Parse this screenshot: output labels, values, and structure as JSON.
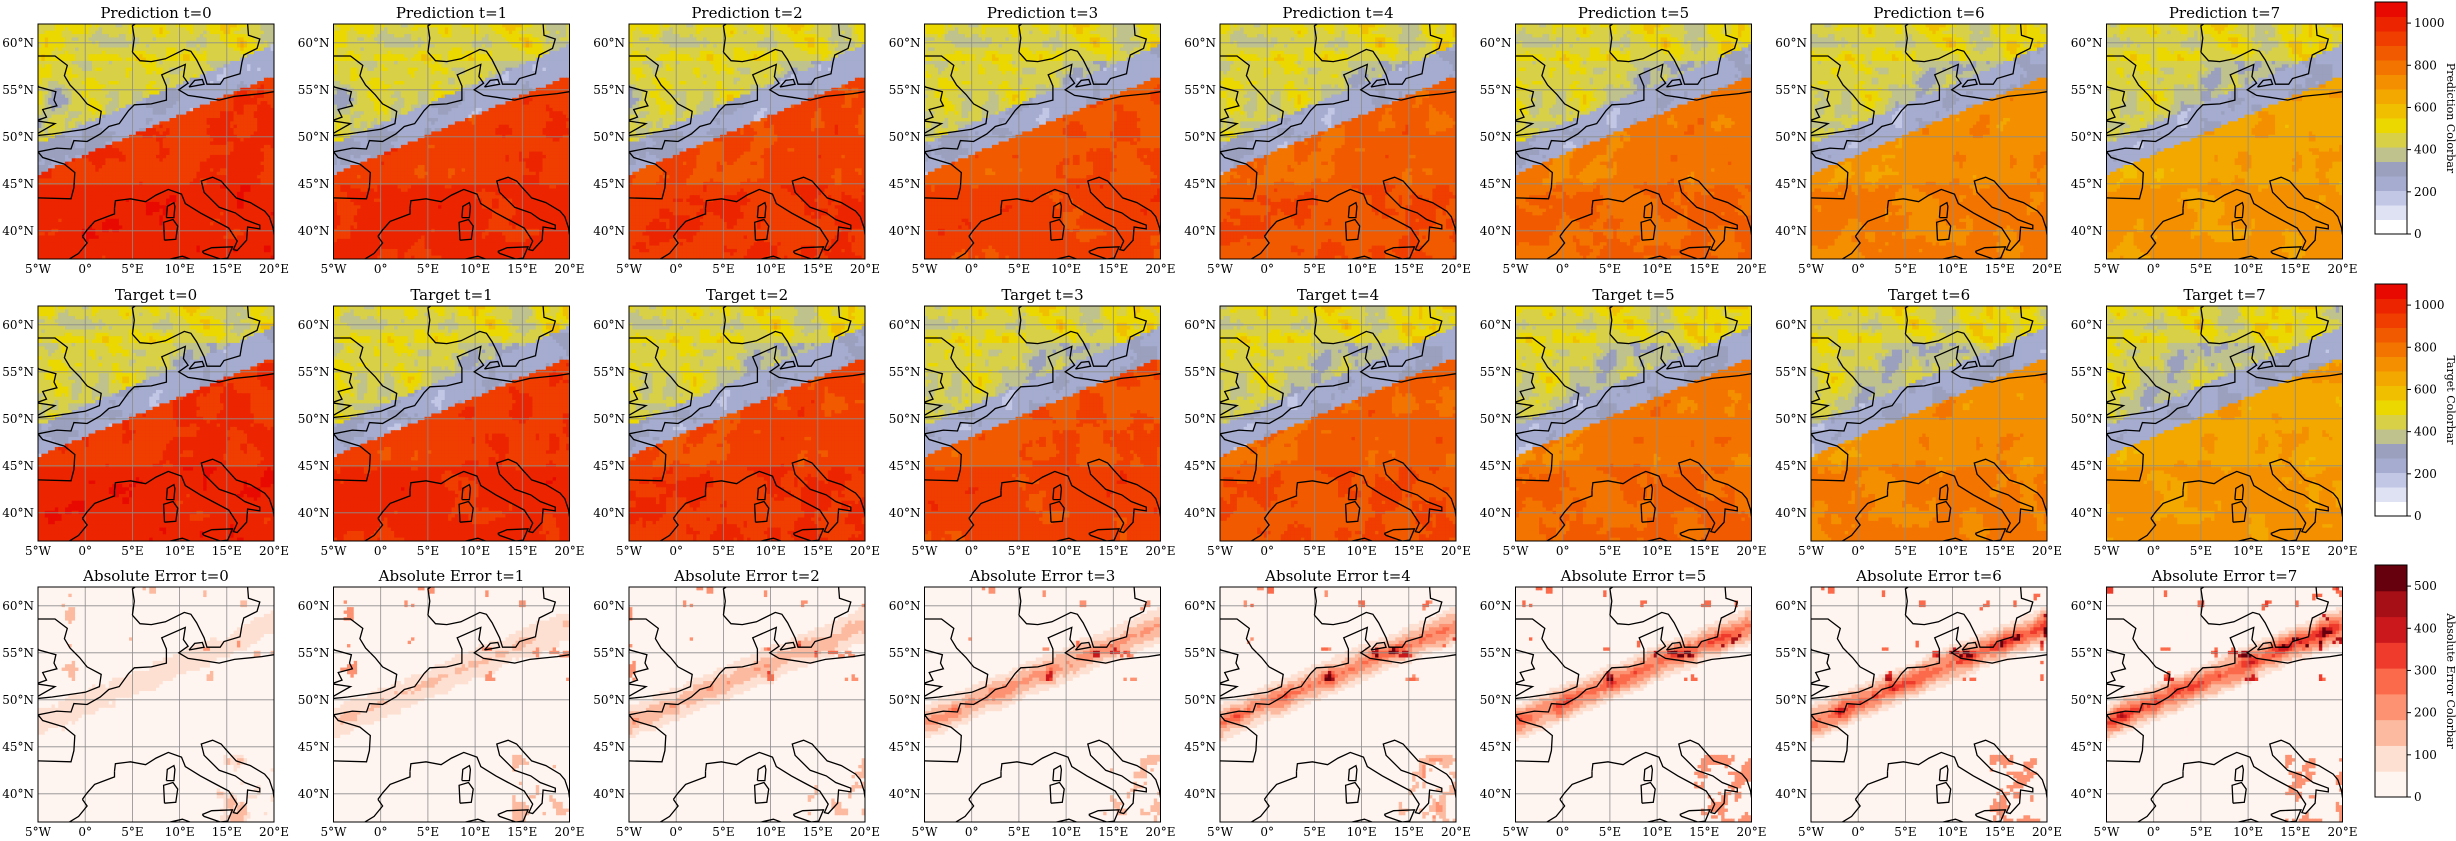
{
  "chart_data": {
    "type": "heatmap",
    "layout": {
      "rows": 3,
      "cols": 8
    },
    "map": {
      "lon_range": [
        -5,
        20
      ],
      "lat_range": [
        37,
        62
      ],
      "x_ticks": [
        {
          "value": -5,
          "label": "5°W"
        },
        {
          "value": 0,
          "label": "0°"
        },
        {
          "value": 5,
          "label": "5°E"
        },
        {
          "value": 10,
          "label": "10°E"
        },
        {
          "value": 15,
          "label": "15°E"
        },
        {
          "value": 20,
          "label": "20°E"
        }
      ],
      "y_ticks": [
        {
          "value": 40,
          "label": "40°N"
        },
        {
          "value": 45,
          "label": "45°N"
        },
        {
          "value": 50,
          "label": "50°N"
        },
        {
          "value": 55,
          "label": "55°N"
        },
        {
          "value": 60,
          "label": "60°N"
        }
      ],
      "grid": true
    },
    "rows": [
      {
        "id": "prediction",
        "titles": [
          "Prediction t=0",
          "Prediction t=1",
          "Prediction t=2",
          "Prediction t=3",
          "Prediction t=4",
          "Prediction t=5",
          "Prediction t=6",
          "Prediction t=7"
        ],
        "colorbar": {
          "label": "Prediction Colorbar",
          "range": [
            0,
            1100
          ],
          "ticks": [
            0,
            200,
            400,
            600,
            800,
            1000
          ],
          "colors": [
            "#ffffff",
            "#dfe2f3",
            "#c2c7e6",
            "#a5accf",
            "#9aa0bd",
            "#bfc28c",
            "#d8d046",
            "#ebd800",
            "#f0c000",
            "#f3a800",
            "#f49000",
            "#f47400",
            "#f25a00",
            "#f03d00",
            "#ec2400",
            "#e80a00"
          ]
        },
        "colormap": "prediction"
      },
      {
        "id": "target",
        "titles": [
          "Target t=0",
          "Target t=1",
          "Target t=2",
          "Target t=3",
          "Target t=4",
          "Target t=5",
          "Target t=6",
          "Target t=7"
        ],
        "colorbar": {
          "label": "Target Colorbar",
          "range": [
            0,
            1100
          ],
          "ticks": [
            0,
            200,
            400,
            600,
            800,
            1000
          ],
          "colors": [
            "#ffffff",
            "#dfe2f3",
            "#c2c7e6",
            "#a5accf",
            "#9aa0bd",
            "#bfc28c",
            "#d8d046",
            "#ebd800",
            "#f0c000",
            "#f3a800",
            "#f49000",
            "#f47400",
            "#f25a00",
            "#f03d00",
            "#ec2400",
            "#e80a00"
          ]
        },
        "colormap": "prediction"
      },
      {
        "id": "absolute-error",
        "titles": [
          "Absolute Error t=0",
          "Absolute Error t=1",
          "Absolute Error t=2",
          "Absolute Error t=3",
          "Absolute Error t=4",
          "Absolute Error t=5",
          "Absolute Error t=6",
          "Absolute Error t=7"
        ],
        "colorbar": {
          "label": "Absolute Error Colorbar",
          "range": [
            0,
            550
          ],
          "ticks": [
            0,
            100,
            200,
            300,
            400,
            500
          ],
          "colors": [
            "#fff5f0",
            "#fee0d2",
            "#fcbba1",
            "#fc9272",
            "#fb6a4a",
            "#ef3b2c",
            "#cb181d",
            "#a50f15",
            "#67000d"
          ]
        },
        "colormap": "error"
      }
    ],
    "timesteps": [
      0,
      1,
      2,
      3,
      4,
      5,
      6,
      7
    ],
    "prediction_field": {
      "description_values": "approximate brightness levels: southern Europe/Mediterranean ~950-1050 at t=0 decreasing toward ~650-750 by t=7; northern band over British Isles/North Sea ~250-450; cloud streaks ~150-300",
      "south_level_by_t": [
        1000,
        980,
        950,
        920,
        880,
        820,
        760,
        700
      ],
      "north_level": 420,
      "band_level": 260
    },
    "error_field": {
      "band_level_by_t": [
        60,
        90,
        130,
        170,
        210,
        240,
        260,
        280
      ],
      "background_level": 15
    }
  }
}
